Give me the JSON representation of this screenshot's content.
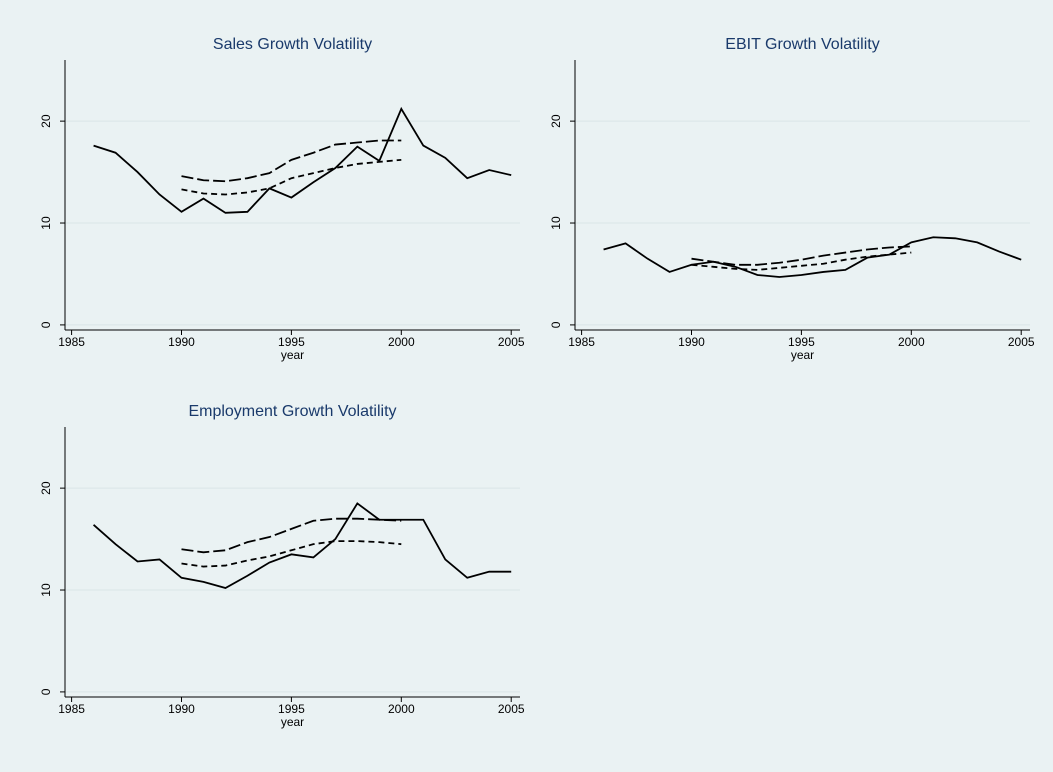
{
  "chart_data": [
    {
      "type": "line",
      "title": "Sales Growth Volatility",
      "x_label": "year",
      "x": [
        1986,
        1987,
        1988,
        1989,
        1990,
        1991,
        1992,
        1993,
        1994,
        1995,
        1996,
        1997,
        1998,
        1999,
        2000,
        2001,
        2002,
        2003,
        2004,
        2005
      ],
      "series": [
        {
          "color": "#000000",
          "dash": "solid",
          "values": [
            17.6,
            16.9,
            15.0,
            12.8,
            11.1,
            12.4,
            11.0,
            11.1,
            13.4,
            12.5,
            14.0,
            15.4,
            17.5,
            16.1,
            21.2,
            17.6,
            16.4,
            14.4,
            15.2,
            14.7
          ]
        },
        {
          "color": "#000000",
          "dash": "long",
          "values": [
            null,
            null,
            null,
            null,
            14.6,
            14.2,
            14.1,
            14.4,
            14.9,
            16.2,
            16.9,
            17.7,
            17.9,
            18.1,
            18.1,
            null,
            null,
            null,
            null,
            null
          ]
        },
        {
          "color": "#000000",
          "dash": "short",
          "values": [
            null,
            null,
            null,
            null,
            13.3,
            12.9,
            12.8,
            13.0,
            13.4,
            14.4,
            14.9,
            15.4,
            15.8,
            16.0,
            16.2,
            null,
            null,
            null,
            null,
            null
          ]
        }
      ],
      "xlim": [
        1984.7,
        2005.4
      ],
      "xticks": [
        1985,
        1990,
        1995,
        2000,
        2005
      ],
      "ylim": [
        -0.5,
        26
      ],
      "yticks": [
        0,
        10,
        20
      ],
      "grid": true
    },
    {
      "type": "line",
      "title": "EBIT Growth Volatility",
      "x_label": "year",
      "x": [
        1986,
        1987,
        1988,
        1989,
        1990,
        1991,
        1992,
        1993,
        1994,
        1995,
        1996,
        1997,
        1998,
        1999,
        2000,
        2001,
        2002,
        2003,
        2004,
        2005
      ],
      "series": [
        {
          "color": "#000000",
          "dash": "solid",
          "values": [
            7.4,
            8.0,
            6.5,
            5.2,
            5.9,
            6.2,
            5.7,
            4.9,
            4.7,
            4.9,
            5.2,
            5.4,
            6.6,
            6.9,
            8.1,
            8.6,
            8.5,
            8.1,
            7.2,
            6.4
          ]
        },
        {
          "color": "#000000",
          "dash": "long",
          "values": [
            null,
            null,
            null,
            null,
            6.5,
            6.2,
            5.9,
            5.9,
            6.1,
            6.4,
            6.8,
            7.1,
            7.4,
            7.6,
            7.7,
            null,
            null,
            null,
            null,
            null
          ]
        },
        {
          "color": "#000000",
          "dash": "short",
          "values": [
            null,
            null,
            null,
            null,
            5.9,
            5.7,
            5.5,
            5.4,
            5.6,
            5.8,
            6.0,
            6.4,
            6.7,
            6.9,
            7.1,
            null,
            null,
            null,
            null,
            null
          ]
        }
      ],
      "xlim": [
        1984.7,
        2005.4
      ],
      "xticks": [
        1985,
        1990,
        1995,
        2000,
        2005
      ],
      "ylim": [
        -0.5,
        26
      ],
      "yticks": [
        0,
        10,
        20
      ],
      "grid": true
    },
    {
      "type": "line",
      "title": "Employment Growth Volatility",
      "x_label": "year",
      "x": [
        1986,
        1987,
        1988,
        1989,
        1990,
        1991,
        1992,
        1993,
        1994,
        1995,
        1996,
        1997,
        1998,
        1999,
        2000,
        2001,
        2002,
        2003,
        2004,
        2005
      ],
      "series": [
        {
          "color": "#000000",
          "dash": "solid",
          "values": [
            16.4,
            14.5,
            12.8,
            13.0,
            11.2,
            10.8,
            10.2,
            11.4,
            12.7,
            13.5,
            13.2,
            15.0,
            18.5,
            16.9,
            16.9,
            16.9,
            13.0,
            11.2,
            11.8,
            11.8
          ]
        },
        {
          "color": "#000000",
          "dash": "long",
          "values": [
            null,
            null,
            null,
            null,
            14.0,
            13.7,
            13.9,
            14.7,
            15.2,
            16.0,
            16.8,
            17.0,
            17.0,
            16.9,
            16.8,
            null,
            null,
            null,
            null,
            null
          ]
        },
        {
          "color": "#000000",
          "dash": "short",
          "values": [
            null,
            null,
            null,
            null,
            12.6,
            12.3,
            12.4,
            12.9,
            13.3,
            13.9,
            14.5,
            14.8,
            14.8,
            14.7,
            14.5,
            null,
            null,
            null,
            null,
            null
          ]
        }
      ],
      "xlim": [
        1984.7,
        2005.4
      ],
      "xticks": [
        1985,
        1990,
        1995,
        2000,
        2005
      ],
      "ylim": [
        -0.5,
        26
      ],
      "yticks": [
        0,
        10,
        20
      ],
      "grid": true
    }
  ]
}
